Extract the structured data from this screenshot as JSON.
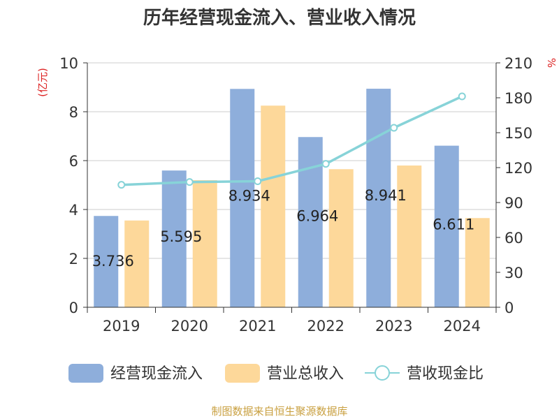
{
  "chart_data": {
    "type": "bar",
    "title": "历年经营现金流入、营业收入情况",
    "categories": [
      "2019",
      "2020",
      "2021",
      "2022",
      "2023",
      "2024"
    ],
    "series": [
      {
        "name": "经营现金流入",
        "kind": "bar",
        "axis": "left",
        "color": "#8eaedb",
        "values": [
          3.736,
          5.595,
          8.934,
          6.964,
          8.941,
          6.611
        ]
      },
      {
        "name": "营业总收入",
        "kind": "bar",
        "axis": "left",
        "color": "#fdd89a",
        "values": [
          3.55,
          5.2,
          8.25,
          5.65,
          5.8,
          3.65
        ]
      },
      {
        "name": "营收现金比",
        "kind": "line",
        "axis": "right",
        "color": "#87d3d8",
        "values": [
          105.2,
          107.6,
          108.3,
          123.2,
          154.2,
          181.2
        ]
      }
    ],
    "data_labels": [
      "3.736",
      "5.595",
      "8.934",
      "6.964",
      "8.941",
      "6.611"
    ],
    "y_left": {
      "label": "(亿元)",
      "min": 0,
      "max": 10,
      "ticks": [
        "0",
        "2",
        "4",
        "6",
        "8",
        "10"
      ]
    },
    "y_right": {
      "label": "%",
      "min": 0,
      "max": 210,
      "ticks": [
        "0",
        "30",
        "60",
        "90",
        "120",
        "150",
        "180",
        "210"
      ]
    },
    "grid": true,
    "legend_position": "bottom"
  },
  "footer": {
    "source": "制图数据来自恒生聚源数据库"
  },
  "colors": {
    "axis_label_red": "#dd2222",
    "source_text": "#c9a040",
    "title": "#333333"
  }
}
